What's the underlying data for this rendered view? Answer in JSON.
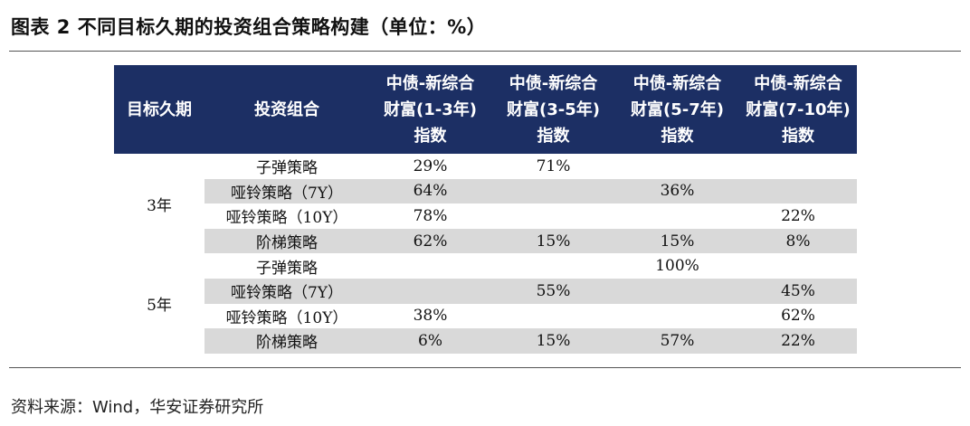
{
  "title": "图表 2 不同目标久期的投资组合策略构建（单位：%）",
  "table": {
    "headers": [
      "目标久期",
      "投资组合",
      "中债-新综合\n财富(1-3年)\n指数",
      "中债-新综合\n财富(3-5年)\n指数",
      "中债-新综合\n财富(5-7年)\n指数",
      "中债-新综合\n财富(7-10年)\n指数"
    ],
    "groups": [
      {
        "label": "3年",
        "rows": [
          {
            "name": "子弹策略",
            "v": [
              "29%",
              "71%",
              "",
              ""
            ]
          },
          {
            "name": "哑铃策略（7Y）",
            "v": [
              "64%",
              "",
              "36%",
              ""
            ]
          },
          {
            "name": "哑铃策略（10Y）",
            "v": [
              "78%",
              "",
              "",
              "22%"
            ]
          },
          {
            "name": "阶梯策略",
            "v": [
              "62%",
              "15%",
              "15%",
              "8%"
            ]
          }
        ]
      },
      {
        "label": "5年",
        "rows": [
          {
            "name": "子弹策略",
            "v": [
              "",
              "",
              "100%",
              ""
            ]
          },
          {
            "name": "哑铃策略（7Y）",
            "v": [
              "",
              "55%",
              "",
              "45%"
            ]
          },
          {
            "name": "哑铃策略（10Y）",
            "v": [
              "38%",
              "",
              "",
              "62%"
            ]
          },
          {
            "name": "阶梯策略",
            "v": [
              "6%",
              "15%",
              "57%",
              "22%"
            ]
          }
        ]
      }
    ]
  },
  "source": "资料来源：Wind，华安证券研究所",
  "colors": {
    "header_bg": "#1c2f64",
    "shade": "#d9d9d9"
  }
}
